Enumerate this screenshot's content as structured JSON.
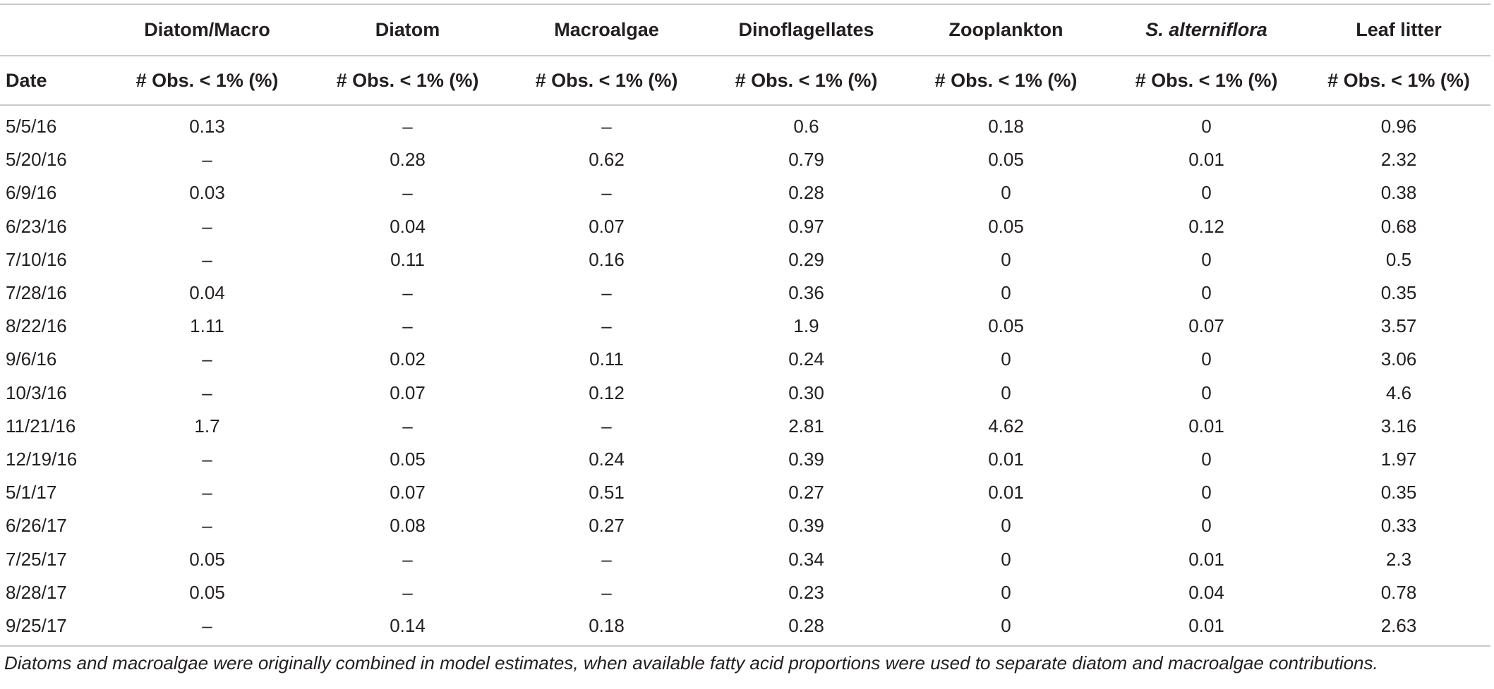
{
  "table": {
    "group_headers": [
      "",
      "Diatom/Macro",
      "Diatom",
      "Macroalgae",
      "Dinoflagellates",
      "Zooplankton",
      "S. alterniflora",
      "Leaf litter"
    ],
    "sub_headers": [
      "Date",
      "# Obs. < 1% (%)",
      "# Obs. < 1% (%)",
      "# Obs. < 1% (%)",
      "# Obs. < 1% (%)",
      "# Obs. < 1% (%)",
      "# Obs. < 1% (%)",
      "# Obs. < 1% (%)"
    ],
    "rows": [
      [
        "5/5/16",
        "0.13",
        "–",
        "–",
        "0.6",
        "0.18",
        "0",
        "0.96"
      ],
      [
        "5/20/16",
        "–",
        "0.28",
        "0.62",
        "0.79",
        "0.05",
        "0.01",
        "2.32"
      ],
      [
        "6/9/16",
        "0.03",
        "–",
        "–",
        "0.28",
        "0",
        "0",
        "0.38"
      ],
      [
        "6/23/16",
        "–",
        "0.04",
        "0.07",
        "0.97",
        "0.05",
        "0.12",
        "0.68"
      ],
      [
        "7/10/16",
        "–",
        "0.11",
        "0.16",
        "0.29",
        "0",
        "0",
        "0.5"
      ],
      [
        "7/28/16",
        "0.04",
        "–",
        "–",
        "0.36",
        "0",
        "0",
        "0.35"
      ],
      [
        "8/22/16",
        "1.11",
        "–",
        "–",
        "1.9",
        "0.05",
        "0.07",
        "3.57"
      ],
      [
        "9/6/16",
        "–",
        "0.02",
        "0.11",
        "0.24",
        "0",
        "0",
        "3.06"
      ],
      [
        "10/3/16",
        "–",
        "0.07",
        "0.12",
        "0.30",
        "0",
        "0",
        "4.6"
      ],
      [
        "11/21/16",
        "1.7",
        "–",
        "–",
        "2.81",
        "4.62",
        "0.01",
        "3.16"
      ],
      [
        "12/19/16",
        "–",
        "0.05",
        "0.24",
        "0.39",
        "0.01",
        "0",
        "1.97"
      ],
      [
        "5/1/17",
        "–",
        "0.07",
        "0.51",
        "0.27",
        "0.01",
        "0",
        "0.35"
      ],
      [
        "6/26/17",
        "–",
        "0.08",
        "0.27",
        "0.39",
        "0",
        "0",
        "0.33"
      ],
      [
        "7/25/17",
        "0.05",
        "–",
        "–",
        "0.34",
        "0",
        "0.01",
        "2.3"
      ],
      [
        "8/28/17",
        "0.05",
        "–",
        "–",
        "0.23",
        "0",
        "0.04",
        "0.78"
      ],
      [
        "9/25/17",
        "–",
        "0.14",
        "0.18",
        "0.28",
        "0",
        "0.01",
        "2.63"
      ]
    ]
  },
  "footnote": "Diatoms and macroalgae were originally combined in model estimates, when available fatty acid proportions were used to separate diatom and macroalgae contributions."
}
